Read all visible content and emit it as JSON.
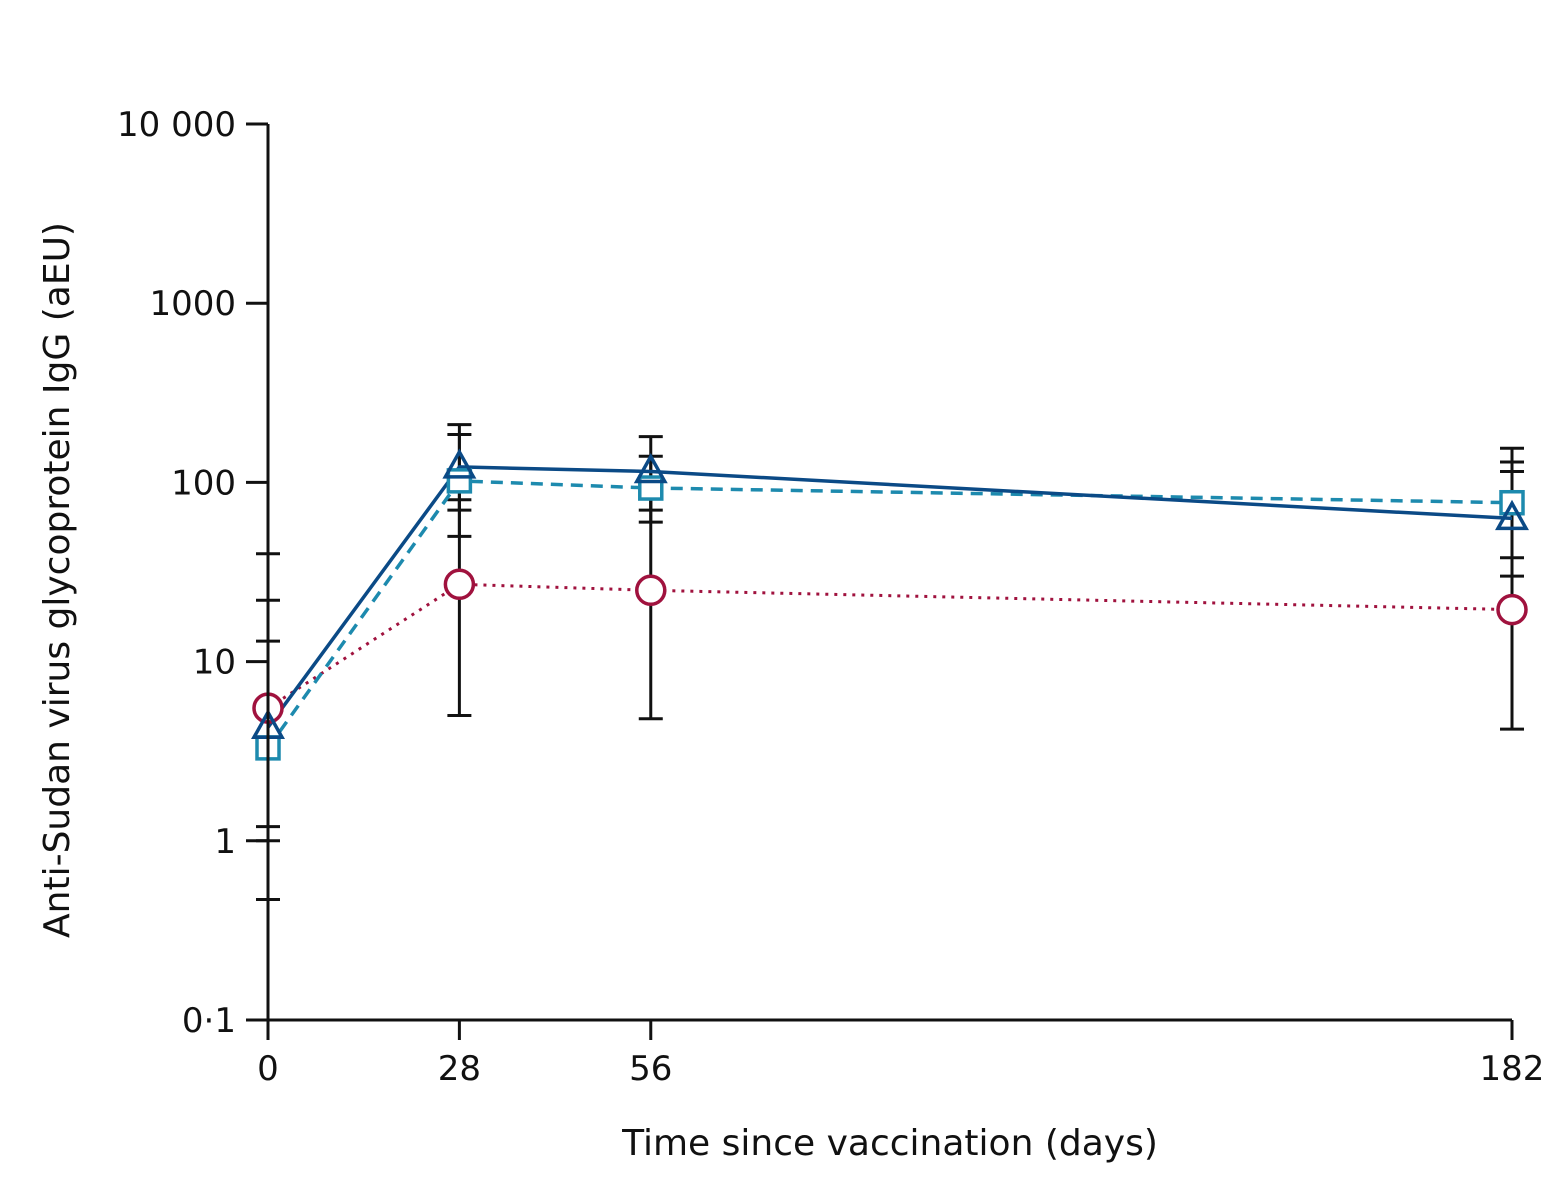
{
  "chart_data": {
    "type": "line",
    "title": "",
    "xlabel": "Time since vaccination (days)",
    "ylabel": "Anti-Sudan virus glycoprotein IgG (aEU)",
    "yscale": "log",
    "ylim": [
      0.1,
      10000
    ],
    "x_ticks": [
      0,
      28,
      56,
      182
    ],
    "x_tick_labels": [
      "0",
      "28",
      "56",
      "182"
    ],
    "y_ticks": [
      0.1,
      1,
      10,
      100,
      1000,
      10000
    ],
    "y_tick_labels": [
      "0·1",
      "1",
      "10",
      "100",
      "1000",
      "10 000"
    ],
    "grid": false,
    "legend": "none",
    "x": [
      0,
      28,
      56,
      182
    ],
    "series": [
      {
        "name": "triangle-series",
        "color": "#0b4a86",
        "line_style": "solid",
        "marker": "triangle",
        "values": [
          4.3,
          122,
          115,
          63
        ],
        "error_low": [
          1,
          50,
          60,
          30
        ],
        "error_high": [
          40,
          210,
          180,
          155
        ]
      },
      {
        "name": "square-series",
        "color": "#1d8aae",
        "line_style": "dashed",
        "marker": "square",
        "values": [
          3.3,
          102,
          93,
          77
        ],
        "error_low": [
          1.2,
          70,
          70,
          38
        ],
        "error_high": [
          22,
          185,
          140,
          130
        ]
      },
      {
        "name": "circle-series",
        "color": "#a0123e",
        "line_style": "dotted",
        "marker": "circle",
        "values": [
          5.5,
          27,
          25,
          19.5
        ],
        "error_low": [
          0.47,
          5,
          4.8,
          4.2
        ],
        "error_high": [
          13,
          80,
          95,
          115
        ]
      }
    ]
  }
}
